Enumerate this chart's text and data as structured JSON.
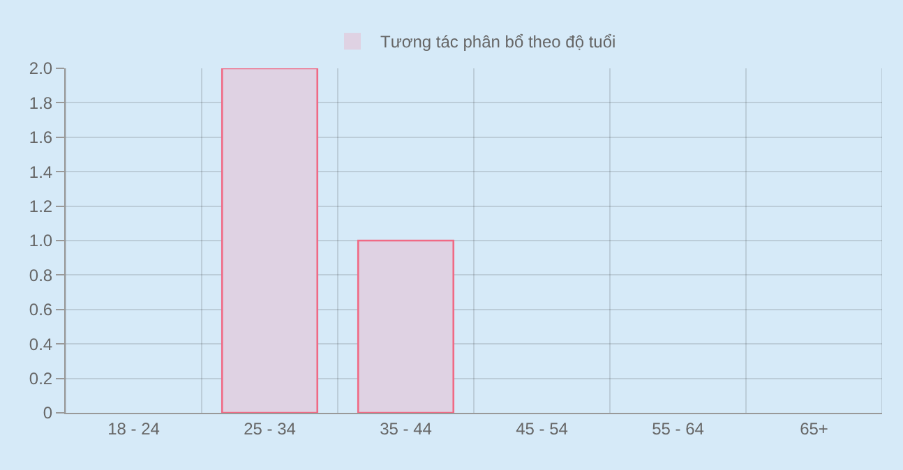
{
  "chart_data": {
    "type": "bar",
    "categories": [
      "18 - 24",
      "25 - 34",
      "35 - 44",
      "45 - 54",
      "55 - 64",
      "65+"
    ],
    "series": [
      {
        "name": "Tương tác phân bổ theo độ tuổi",
        "color": "#dfd2e3",
        "values": [
          0,
          2,
          1,
          0,
          0,
          0
        ]
      }
    ],
    "ylim": [
      0,
      2
    ],
    "yticks": [
      0,
      {
        "value": 0.2,
        "label": "0.2"
      },
      {
        "value": 0.4,
        "label": "0.4"
      },
      {
        "value": 0.6,
        "label": "0.6"
      },
      {
        "value": 0.8,
        "label": "0.8"
      },
      {
        "value": 1,
        "label": "1.0"
      },
      {
        "value": 1.2,
        "label": "1.2"
      },
      {
        "value": 1.4,
        "label": "1.4"
      },
      {
        "value": 1.6,
        "label": "1.6"
      },
      {
        "value": 1.8,
        "label": "1.8"
      },
      {
        "value": 2,
        "label": "2.0"
      }
    ],
    "grid": true,
    "legend": "top"
  }
}
